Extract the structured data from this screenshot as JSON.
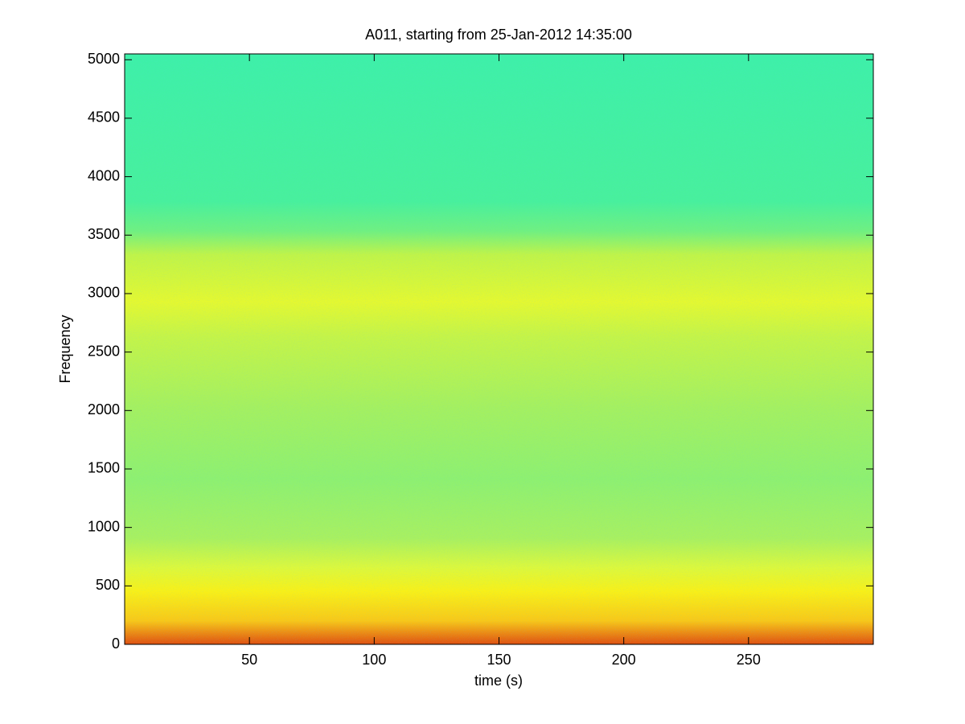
{
  "chart_data": {
    "type": "spectrogram",
    "title": "A011, starting from 25-Jan-2012 14:35:00",
    "x_label": "time (s)",
    "y_label": "Frequency",
    "xlim": [
      0,
      300
    ],
    "xticks": [
      50,
      100,
      150,
      200,
      250
    ],
    "ylim": [
      0,
      5050
    ],
    "yticks": [
      0,
      500,
      1000,
      1500,
      2000,
      2500,
      3000,
      3500,
      4000,
      4500,
      5000
    ]
  }
}
